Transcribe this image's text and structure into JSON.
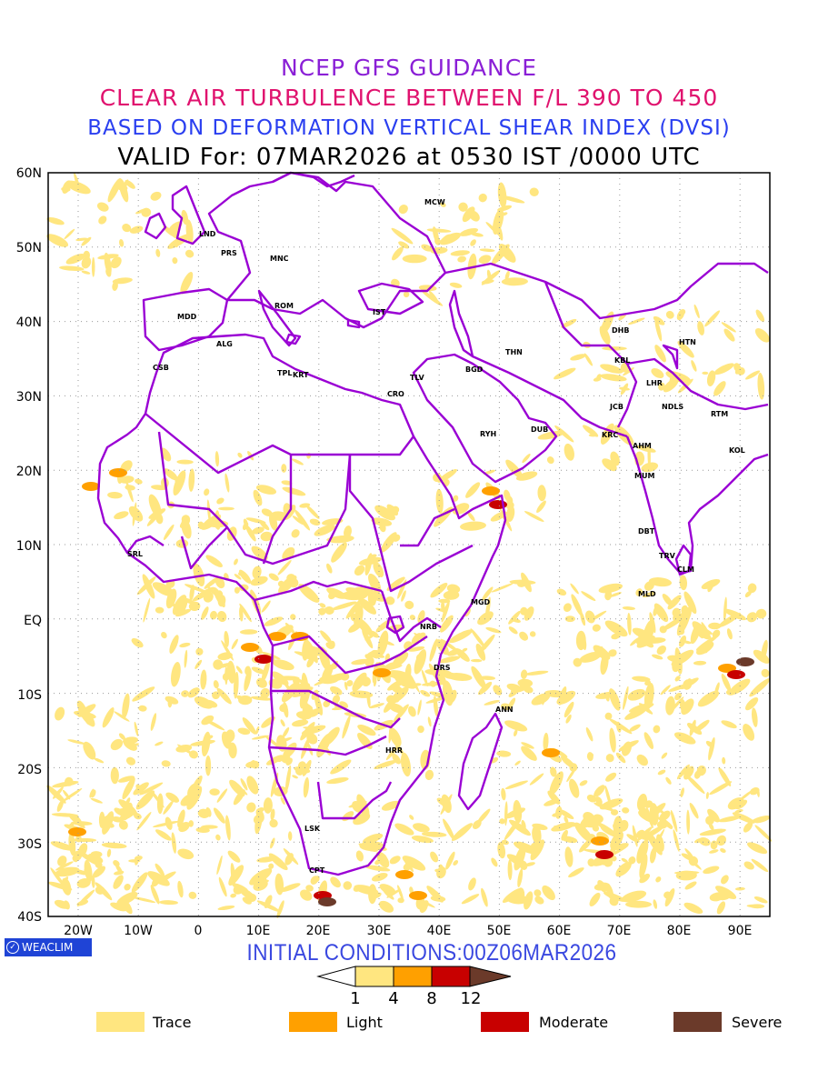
{
  "titles": {
    "line1": "NCEP GFS GUIDANCE",
    "line2": "CLEAR AIR TURBULENCE BETWEEN F/L 390 TO 450",
    "line3": "BASED ON DEFORMATION VERTICAL SHEAR INDEX (DVSI)",
    "line4": "VALID For: 07MAR2026 at 0530 IST /0000 UTC"
  },
  "colors": {
    "title1": "#8a1fd6",
    "title2": "#e0126e",
    "title3": "#2a3ff0",
    "title4": "#000000",
    "boundary": "#9a00d4",
    "trace": "#ffe680",
    "light": "#ffa000",
    "moderate": "#c80000",
    "severe": "#6b3a2a"
  },
  "lat_labels": [
    "60N",
    "50N",
    "40N",
    "30N",
    "20N",
    "10N",
    "EQ",
    "10S",
    "20S",
    "30S",
    "40S"
  ],
  "lon_labels": [
    "20W",
    "10W",
    "0",
    "10E",
    "20E",
    "30E",
    "40E",
    "50E",
    "60E",
    "70E",
    "80E",
    "90E"
  ],
  "cities": [
    {
      "code": "MCW"
    },
    {
      "code": "LND"
    },
    {
      "code": "PRS"
    },
    {
      "code": "MNC"
    },
    {
      "code": "ROM"
    },
    {
      "code": "MDD"
    },
    {
      "code": "IST"
    },
    {
      "code": "ALG"
    },
    {
      "code": "CSB"
    },
    {
      "code": "TPL"
    },
    {
      "code": "KRT"
    },
    {
      "code": "CRO"
    },
    {
      "code": "TLV"
    },
    {
      "code": "BGD"
    },
    {
      "code": "THN"
    },
    {
      "code": "DHB"
    },
    {
      "code": "HTN"
    },
    {
      "code": "KBL"
    },
    {
      "code": "LHR"
    },
    {
      "code": "JCB"
    },
    {
      "code": "NDLS"
    },
    {
      "code": "RTM"
    },
    {
      "code": "RYH"
    },
    {
      "code": "DUB"
    },
    {
      "code": "KRC"
    },
    {
      "code": "AHM"
    },
    {
      "code": "KOL"
    },
    {
      "code": "MUM"
    },
    {
      "code": "DBT"
    },
    {
      "code": "TRV"
    },
    {
      "code": "CLM"
    },
    {
      "code": "MLD"
    },
    {
      "code": "SRL"
    },
    {
      "code": "MGD"
    },
    {
      "code": "NRB"
    },
    {
      "code": "DRS"
    },
    {
      "code": "ANN"
    },
    {
      "code": "HRR"
    },
    {
      "code": "LSK"
    },
    {
      "code": "CPT"
    }
  ],
  "logo": "WEACLIM",
  "initial_conditions": "INITIAL CONDITIONS:00Z06MAR2026",
  "colorbar_values": [
    "1",
    "4",
    "8",
    "12"
  ],
  "legend": [
    {
      "label": "Trace",
      "color": "#ffe680"
    },
    {
      "label": "Light",
      "color": "#ffa000"
    },
    {
      "label": "Moderate",
      "color": "#c80000"
    },
    {
      "label": "Severe",
      "color": "#6b3a2a"
    }
  ]
}
